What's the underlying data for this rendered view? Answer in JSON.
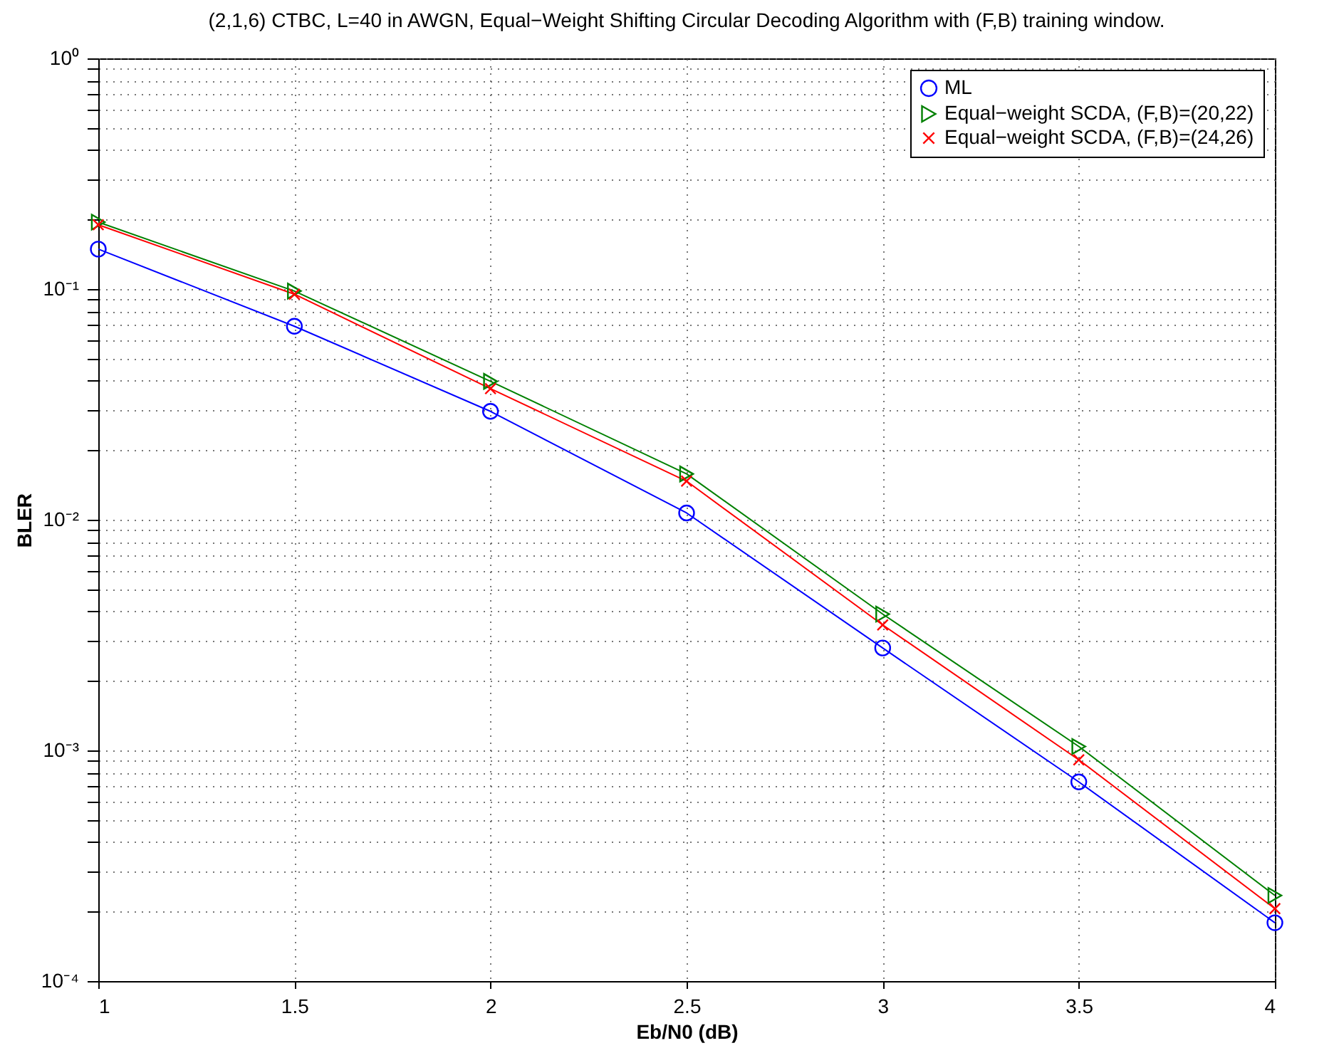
{
  "chart_data": {
    "type": "line",
    "title": "(2,1,6) CTBC, L=40 in AWGN, Equal−Weight Shifting Circular Decoding Algorithm with (F,B) training window.",
    "xlabel": "Eb/N0 (dB)",
    "ylabel": "BLER",
    "x": [
      1,
      1.5,
      2,
      2.5,
      3,
      3.5,
      4
    ],
    "series": [
      {
        "name": "ML",
        "color": "#0000ff",
        "marker": "circle",
        "values": [
          0.149,
          0.069,
          0.0295,
          0.0107,
          0.00278,
          0.00073,
          0.000179
        ]
      },
      {
        "name": "Equal−weight SCDA, (F,B)=(20,22)",
        "color": "#008000",
        "marker": "triangle",
        "values": [
          0.195,
          0.098,
          0.0398,
          0.0158,
          0.0039,
          0.00104,
          0.000235
        ]
      },
      {
        "name": "Equal−weight SCDA, (F,B)=(24,26)",
        "color": "#ff0000",
        "marker": "cross",
        "values": [
          0.19,
          0.095,
          0.037,
          0.0147,
          0.0035,
          0.00091,
          0.000206
        ]
      }
    ],
    "log": "y",
    "xlim": [
      1,
      4
    ],
    "xticks": [
      1,
      1.5,
      2,
      2.5,
      3,
      3.5,
      4
    ],
    "ylim": [
      0.0001,
      1
    ],
    "yticks": [
      {
        "value": 0.0001,
        "label": "10⁻⁴"
      },
      {
        "value": 0.0002,
        "label": null
      },
      {
        "value": 0.0003,
        "label": null
      },
      {
        "value": 0.0004,
        "label": null
      },
      {
        "value": 0.0005,
        "label": null
      },
      {
        "value": 0.0006,
        "label": null
      },
      {
        "value": 0.0007,
        "label": null
      },
      {
        "value": 0.0008,
        "label": null
      },
      {
        "value": 0.0009,
        "label": null
      },
      {
        "value": 0.001,
        "label": "10⁻³"
      },
      {
        "value": 0.002,
        "label": null
      },
      {
        "value": 0.003,
        "label": null
      },
      {
        "value": 0.004,
        "label": null
      },
      {
        "value": 0.005,
        "label": null
      },
      {
        "value": 0.006,
        "label": null
      },
      {
        "value": 0.007,
        "label": null
      },
      {
        "value": 0.008,
        "label": null
      },
      {
        "value": 0.009,
        "label": null
      },
      {
        "value": 0.01,
        "label": "10⁻²"
      },
      {
        "value": 0.02,
        "label": null
      },
      {
        "value": 0.03,
        "label": null
      },
      {
        "value": 0.04,
        "label": null
      },
      {
        "value": 0.05,
        "label": null
      },
      {
        "value": 0.06,
        "label": null
      },
      {
        "value": 0.07,
        "label": null
      },
      {
        "value": 0.08,
        "label": null
      },
      {
        "value": 0.09,
        "label": null
      },
      {
        "value": 0.1,
        "label": "10⁻¹"
      },
      {
        "value": 0.2,
        "label": null
      },
      {
        "value": 0.3,
        "label": null
      },
      {
        "value": 0.4,
        "label": null
      },
      {
        "value": 0.5,
        "label": null
      },
      {
        "value": 0.6,
        "label": null
      },
      {
        "value": 0.7,
        "label": null
      },
      {
        "value": 0.8,
        "label": null
      },
      {
        "value": 0.9,
        "label": null
      },
      {
        "value": 1,
        "label": "10⁰"
      }
    ],
    "grid": true,
    "legend": "top right",
    "line_style": "solid"
  }
}
